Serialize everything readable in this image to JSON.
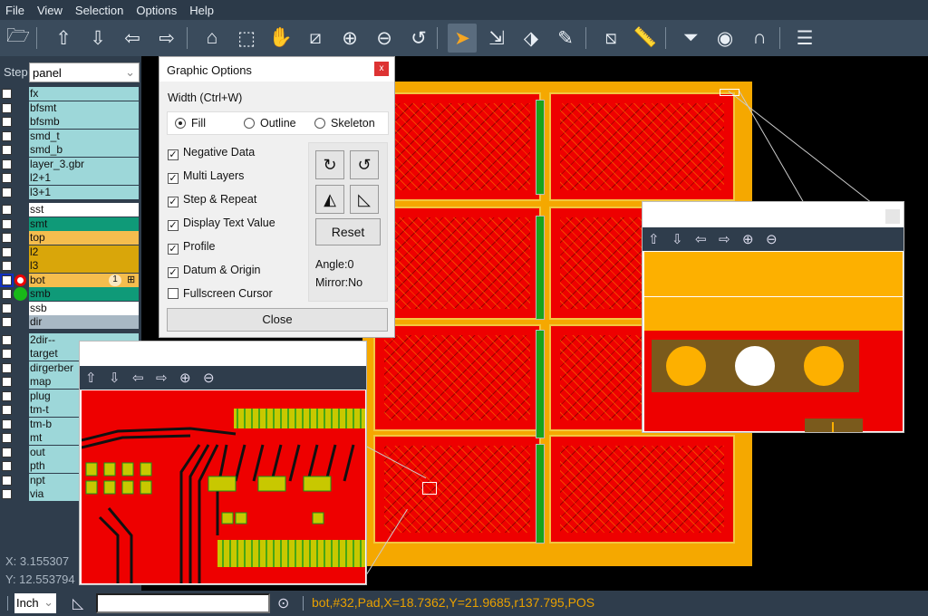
{
  "menu": [
    "File",
    "View",
    "Selection",
    "Options",
    "Help"
  ],
  "toolbar": {
    "icons": [
      "open-folder-icon",
      "import-up-icon",
      "import-down-icon",
      "import-left-icon",
      "import-right-icon",
      "home-icon",
      "zoom-area-icon",
      "pan-hand-icon",
      "measure-icon",
      "zoom-in-icon",
      "zoom-out-icon",
      "zoom-previous-icon",
      "select-cursor-icon",
      "move-icon",
      "transform-icon",
      "ruler-edit-icon",
      "crop-icon",
      "ruler-icon",
      "filter-icon",
      "view-eye-icon",
      "magnet-icon",
      "list-icon"
    ],
    "selected": "select-cursor-icon"
  },
  "step": {
    "label": "Step",
    "value": "panel"
  },
  "layers": {
    "group1": [
      {
        "name": "fx",
        "color": "#9dd7d9"
      },
      {
        "name": "bfsmt",
        "color": "#9dd7d9"
      },
      {
        "name": "bfsmb",
        "color": "#9dd7d9"
      },
      {
        "name": "smd_t",
        "color": "#9dd7d9"
      },
      {
        "name": "smd_b",
        "color": "#9dd7d9"
      },
      {
        "name": "layer_3.gbr",
        "color": "#9dd7d9"
      },
      {
        "name": "l2+1",
        "color": "#9dd7d9"
      },
      {
        "name": "l3+1",
        "color": "#9dd7d9"
      }
    ],
    "group2": [
      {
        "name": "sst",
        "color": "#ffffff"
      },
      {
        "name": "smt",
        "color": "#0f9a78"
      },
      {
        "name": "top",
        "color": "#f5bd4e"
      },
      {
        "name": "l2",
        "color": "#d9a60a"
      },
      {
        "name": "l3",
        "color": "#d9a60a"
      },
      {
        "name": "bot",
        "color": "#f5bd4e",
        "badge": "1",
        "active": true
      },
      {
        "name": "smb",
        "color": "#0f9a78"
      },
      {
        "name": "ssb",
        "color": "#ffffff"
      },
      {
        "name": "dir",
        "color": "#a8b8c4"
      }
    ],
    "group3": [
      {
        "name": "2dir--"
      },
      {
        "name": "target"
      },
      {
        "name": "dirgerber"
      },
      {
        "name": "map"
      },
      {
        "name": "plug"
      },
      {
        "name": "tm-t"
      },
      {
        "name": "tm-b"
      },
      {
        "name": "mt"
      },
      {
        "name": "out"
      },
      {
        "name": "pth"
      },
      {
        "name": "npt"
      },
      {
        "name": "via"
      }
    ],
    "group3_color": "#9dd7d9"
  },
  "coords": {
    "x": "X: 3.155307",
    "y": "Y: 12.553794"
  },
  "dialog": {
    "title": "Graphic Options",
    "close_x": "x",
    "width_label": "Width (Ctrl+W)",
    "modes": [
      "Fill",
      "Outline",
      "Skeleton"
    ],
    "mode_selected": "Fill",
    "options": [
      {
        "label": "Negative Data",
        "checked": true
      },
      {
        "label": "Multi Layers",
        "checked": true
      },
      {
        "label": "Step & Repeat",
        "checked": true
      },
      {
        "label": "Display Text Value",
        "checked": true
      },
      {
        "label": "Profile",
        "checked": true
      },
      {
        "label": "Datum & Origin",
        "checked": true
      },
      {
        "label": "Fullscreen Cursor",
        "checked": false
      }
    ],
    "reset": "Reset",
    "angle": "Angle:0",
    "mirror": "Mirror:No",
    "close": "Close"
  },
  "status": {
    "unit": "Inch",
    "message": "bot,#32,Pad,X=18.7362,Y=21.9685,r137.795,POS"
  },
  "colors": {
    "board": "#f5a800",
    "copper": "#ee0000",
    "accent": "#e8a000"
  }
}
